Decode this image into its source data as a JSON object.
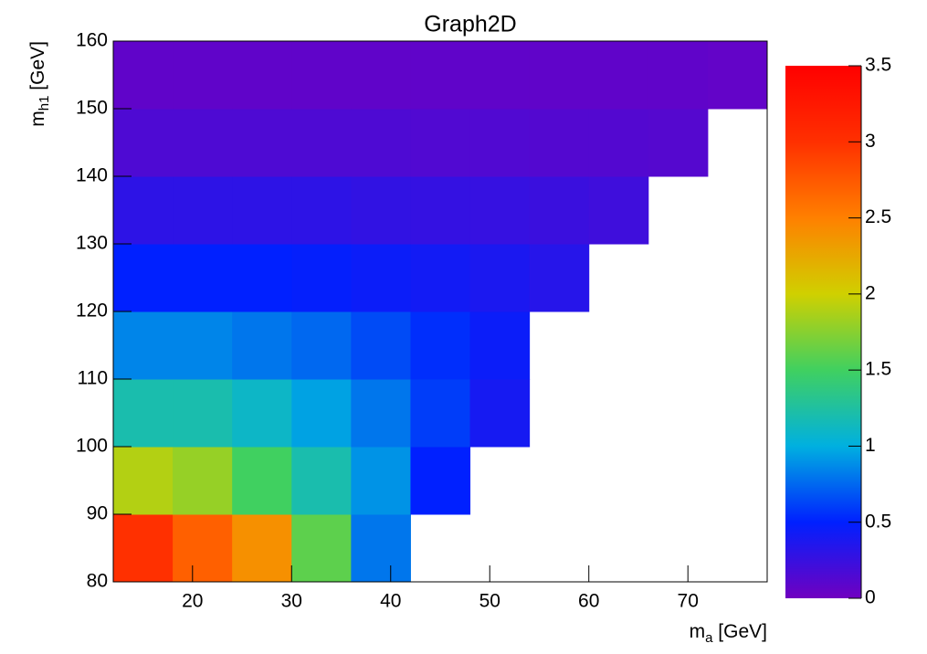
{
  "chart_data": {
    "type": "heatmap",
    "title": "Graph2D",
    "x_label": [
      "m",
      "a",
      " [GeV]"
    ],
    "y_label": [
      "m",
      "h1",
      " [GeV]"
    ],
    "x": [
      15,
      21,
      27,
      33,
      39,
      45,
      51,
      57,
      63,
      69,
      75
    ],
    "y": [
      85,
      95,
      105,
      115,
      125,
      135,
      145,
      155
    ],
    "z": [
      [
        3.0,
        2.7,
        2.4,
        1.6,
        0.8,
        null,
        null,
        null,
        null,
        null,
        null
      ],
      [
        1.9,
        1.8,
        1.5,
        1.2,
        0.9,
        0.5,
        null,
        null,
        null,
        null,
        null
      ],
      [
        1.2,
        1.2,
        1.1,
        0.95,
        0.8,
        0.6,
        0.4,
        null,
        null,
        null,
        null
      ],
      [
        0.85,
        0.85,
        0.8,
        0.75,
        0.65,
        0.55,
        0.45,
        null,
        null,
        null,
        null
      ],
      [
        0.5,
        0.5,
        0.5,
        0.48,
        0.45,
        0.42,
        0.38,
        0.33,
        null,
        null,
        null
      ],
      [
        0.3,
        0.3,
        0.3,
        0.3,
        0.28,
        0.27,
        0.26,
        0.24,
        0.22,
        null,
        null
      ],
      [
        0.15,
        0.15,
        0.15,
        0.15,
        0.15,
        0.14,
        0.14,
        0.13,
        0.13,
        0.12,
        null
      ],
      [
        0.07,
        0.07,
        0.07,
        0.07,
        0.07,
        0.07,
        0.07,
        0.07,
        0.07,
        0.07,
        0.06
      ]
    ],
    "xlim": [
      12,
      78
    ],
    "ylim": [
      80,
      160
    ],
    "zlim": [
      0,
      3.5
    ],
    "xticks": [
      20,
      30,
      40,
      50,
      60,
      70
    ],
    "yticks": [
      80,
      90,
      100,
      110,
      120,
      130,
      140,
      150,
      160
    ],
    "zticks": [
      0,
      0.5,
      1,
      1.5,
      2,
      2.5,
      3,
      3.5
    ],
    "colors": [
      "#7000c0",
      "#0020ff",
      "#00b0e0",
      "#40d060",
      "#d0d000",
      "#ff8000",
      "#ff3000",
      "#ff0000"
    ]
  }
}
